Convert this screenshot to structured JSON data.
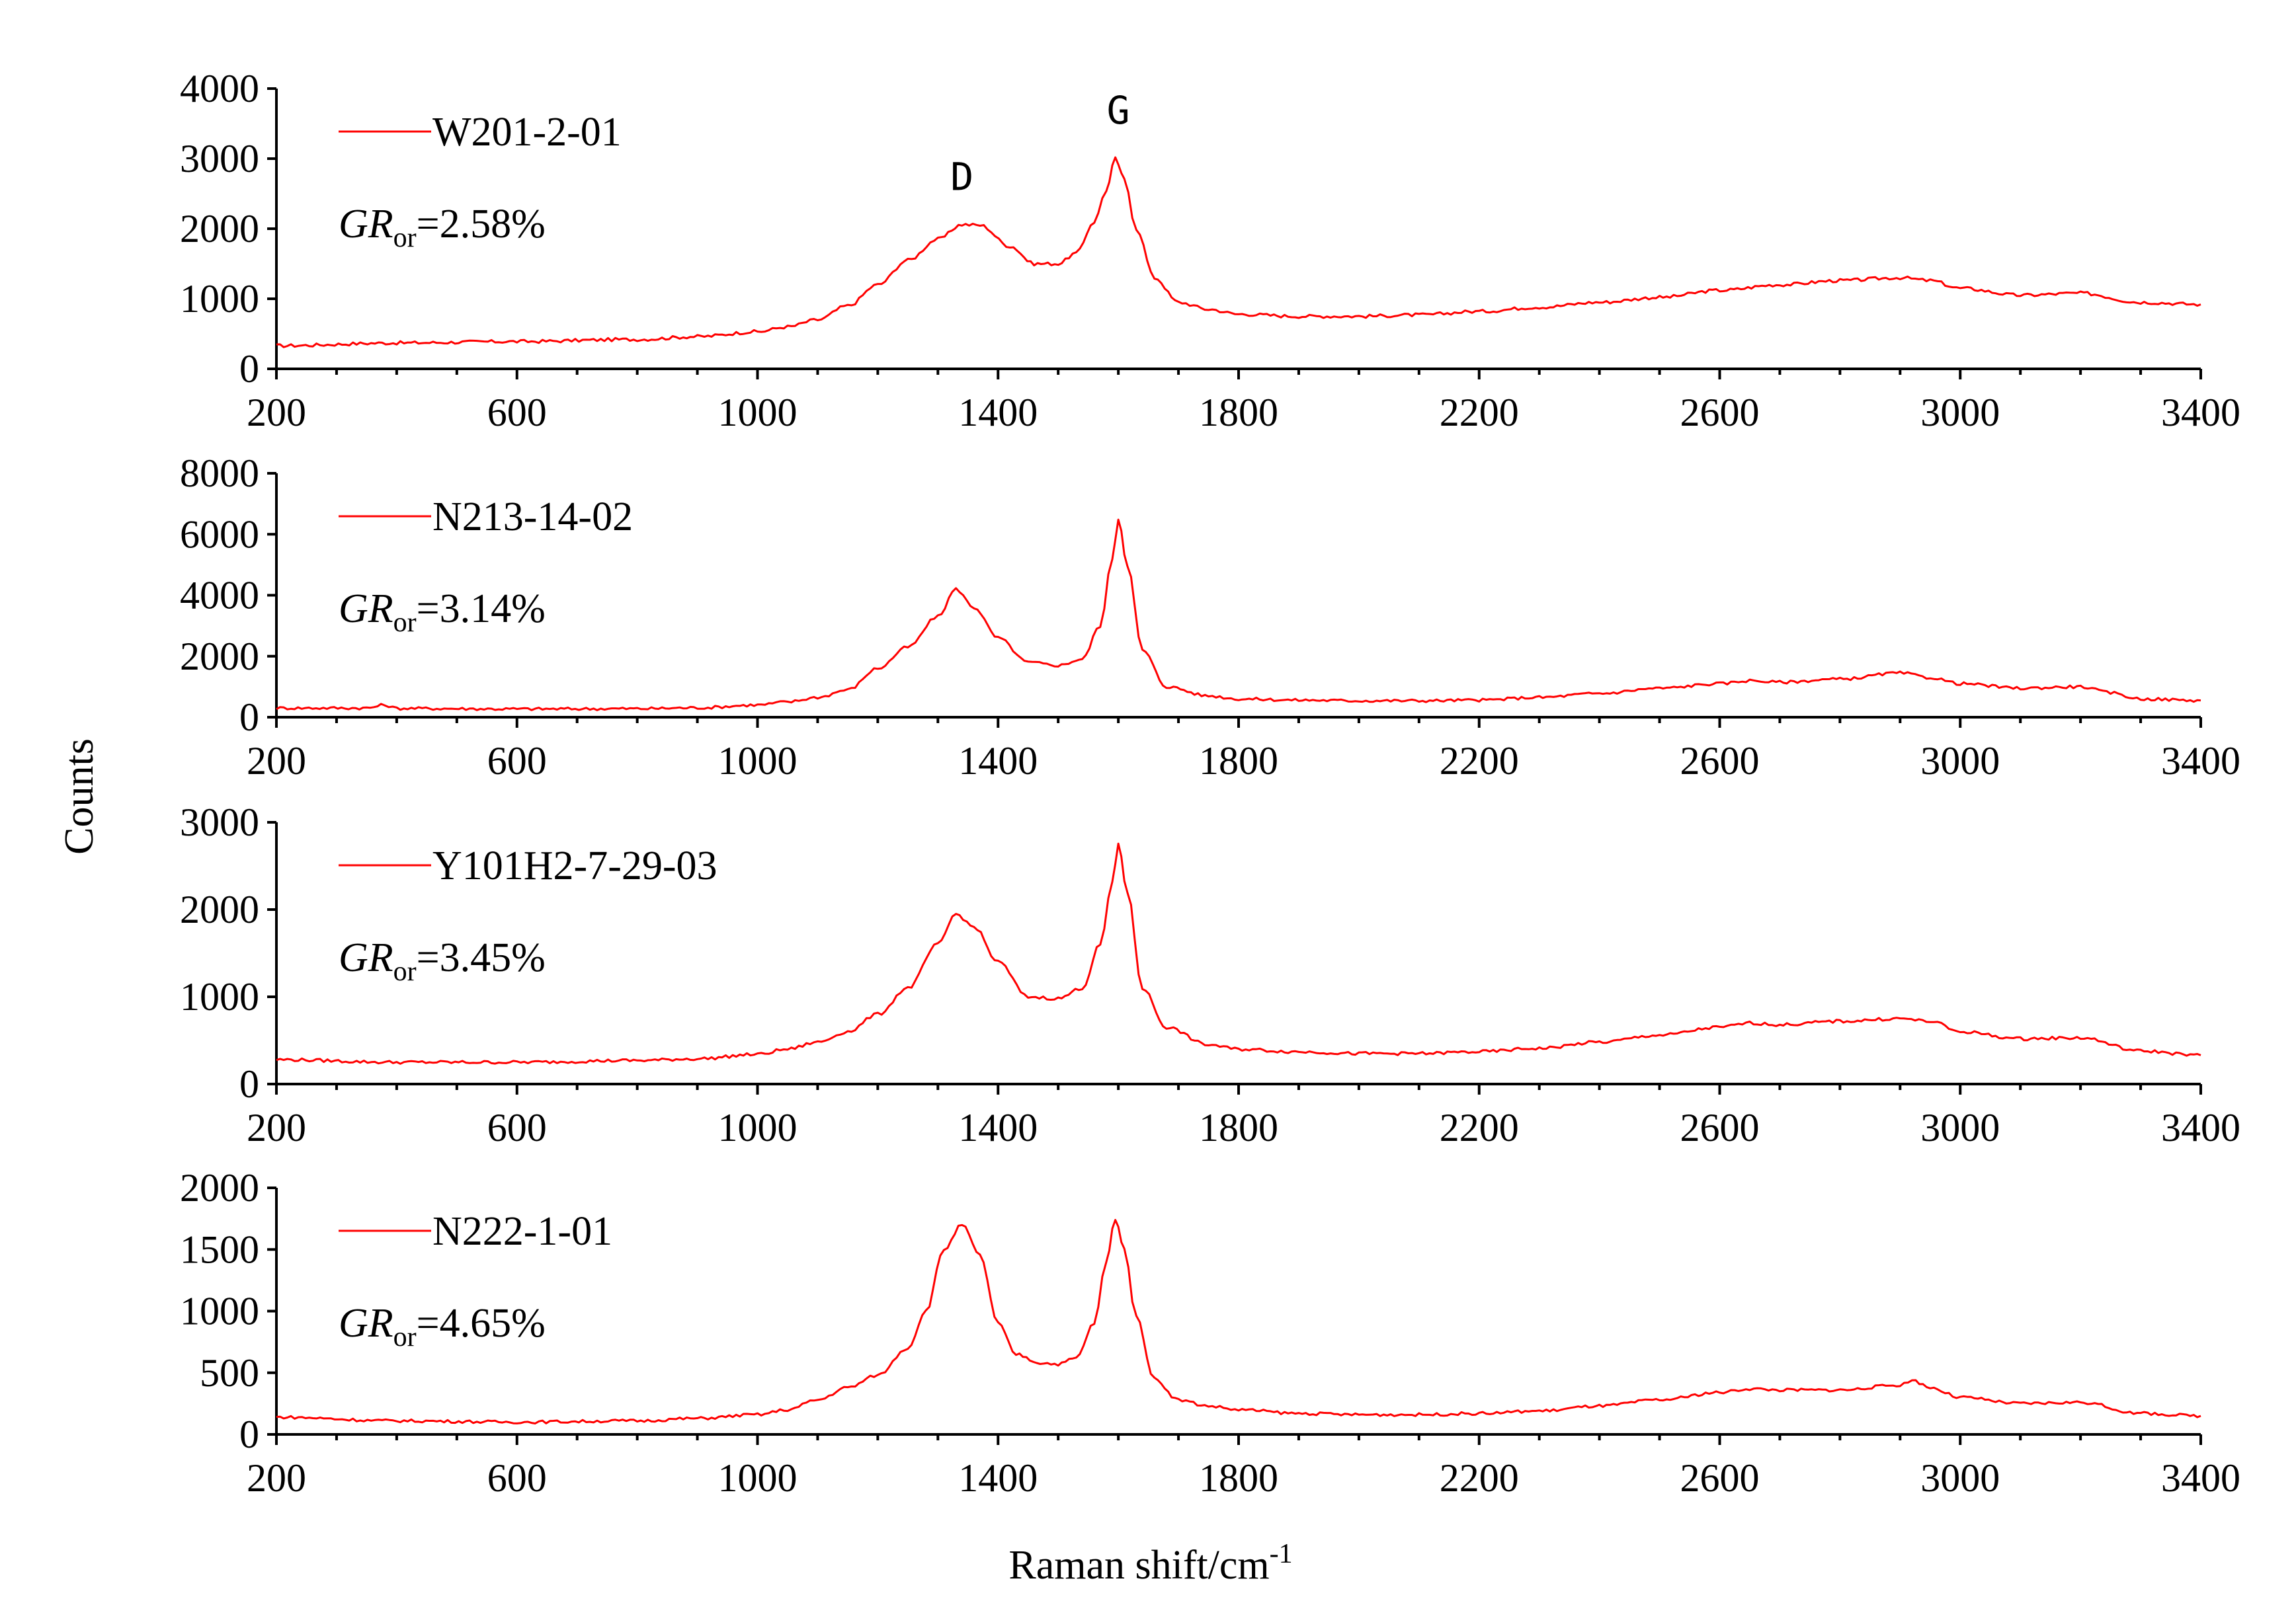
{
  "colors": {
    "series": "#ff0000",
    "axis": "#000000",
    "background": "#ffffff"
  },
  "chart_data": {
    "type": "line",
    "title": "",
    "xlabel": "Raman shift/cm",
    "xlabel_superscript": "-1",
    "ylabel": "Counts",
    "xlim": [
      200,
      3400
    ],
    "xticks": [
      200,
      600,
      1000,
      1400,
      1800,
      2200,
      2600,
      3000,
      3400
    ],
    "xtick_labels": [
      "200",
      "600",
      "1000",
      "1400",
      "1800",
      "2200",
      "2600",
      "3000",
      "3400"
    ],
    "grid": false,
    "panels": [
      {
        "series_name": "W201-2-01",
        "gr_label": "GR",
        "gr_sub": "or",
        "gr_value": "=2.58%",
        "ylim": [
          0,
          4000
        ],
        "yticks": [
          0,
          1000,
          2000,
          3000,
          4000
        ],
        "ytick_labels": [
          "0",
          "1000",
          "2000",
          "3000",
          "4000"
        ],
        "peak_labels": [
          {
            "text": "D",
            "x": 1340,
            "y": 2550
          },
          {
            "text": "G",
            "x": 1600,
            "y": 3500
          }
        ],
        "x": [
          200,
          400,
          600,
          800,
          900,
          1000,
          1050,
          1100,
          1150,
          1200,
          1250,
          1300,
          1340,
          1370,
          1420,
          1460,
          1500,
          1530,
          1560,
          1580,
          1595,
          1610,
          1630,
          1660,
          1700,
          1750,
          1800,
          1900,
          2000,
          2100,
          2200,
          2300,
          2400,
          2500,
          2600,
          2700,
          2800,
          2900,
          2950,
          3000,
          3100,
          3200,
          3300,
          3400
        ],
        "y": [
          330,
          370,
          390,
          420,
          460,
          530,
          600,
          700,
          900,
          1200,
          1550,
          1850,
          2060,
          2050,
          1750,
          1500,
          1500,
          1650,
          2100,
          2550,
          3000,
          2700,
          2000,
          1300,
          950,
          850,
          780,
          750,
          750,
          770,
          820,
          880,
          950,
          1020,
          1120,
          1200,
          1260,
          1300,
          1260,
          1150,
          1050,
          1080,
          950,
          920
        ]
      },
      {
        "series_name": "N213-14-02",
        "gr_label": "GR",
        "gr_sub": "or",
        "gr_value": "=3.14%",
        "ylim": [
          0,
          8000
        ],
        "yticks": [
          0,
          2000,
          4000,
          6000,
          8000
        ],
        "ytick_labels": [
          "0",
          "2000",
          "4000",
          "6000",
          "8000"
        ],
        "peak_labels": [],
        "x": [
          200,
          350,
          380,
          400,
          600,
          800,
          900,
          1000,
          1050,
          1100,
          1150,
          1200,
          1250,
          1300,
          1330,
          1360,
          1400,
          1450,
          1500,
          1540,
          1570,
          1590,
          1600,
          1615,
          1640,
          1680,
          1750,
          1800,
          1900,
          2000,
          2100,
          2200,
          2300,
          2400,
          2500,
          2600,
          2650,
          2700,
          2800,
          2900,
          2950,
          3000,
          3100,
          3200,
          3250,
          3300,
          3400
        ],
        "y": [
          300,
          300,
          400,
          290,
          270,
          280,
          310,
          400,
          500,
          650,
          900,
          1600,
          2300,
          3300,
          4200,
          3600,
          2600,
          1800,
          1700,
          1900,
          3000,
          5200,
          6500,
          5000,
          2200,
          1000,
          700,
          600,
          560,
          540,
          540,
          560,
          650,
          780,
          950,
          1100,
          1200,
          1150,
          1250,
          1450,
          1300,
          1100,
          950,
          1000,
          800,
          600,
          550
        ]
      },
      {
        "series_name": "Y101H2-7-29-03",
        "gr_label": "GR",
        "gr_sub": "or",
        "gr_value": "=3.45%",
        "ylim": [
          0,
          3000
        ],
        "yticks": [
          0,
          1000,
          2000,
          3000
        ],
        "ytick_labels": [
          "0",
          "1000",
          "2000",
          "3000"
        ],
        "peak_labels": [],
        "x": [
          200,
          400,
          600,
          800,
          900,
          1000,
          1050,
          1100,
          1150,
          1200,
          1250,
          1300,
          1330,
          1360,
          1400,
          1450,
          1500,
          1540,
          1570,
          1590,
          1600,
          1615,
          1640,
          1680,
          1750,
          1800,
          1900,
          2000,
          2100,
          2200,
          2300,
          2400,
          2500,
          2600,
          2650,
          2700,
          2800,
          2900,
          2950,
          3000,
          3100,
          3200,
          3300,
          3400
        ],
        "y": [
          280,
          250,
          250,
          270,
          290,
          340,
          400,
          480,
          600,
          800,
          1100,
          1600,
          1950,
          1800,
          1400,
          1000,
          980,
          1100,
          1600,
          2300,
          2750,
          2200,
          1100,
          650,
          450,
          400,
          370,
          350,
          350,
          370,
          410,
          480,
          560,
          650,
          700,
          680,
          720,
          750,
          720,
          600,
          520,
          530,
          380,
          330
        ]
      },
      {
        "series_name": "N222-1-01",
        "gr_label": "GR",
        "gr_sub": "or",
        "gr_value": "=4.65%",
        "ylim": [
          0,
          2000
        ],
        "yticks": [
          0,
          500,
          1000,
          1500,
          2000
        ],
        "ytick_labels": [
          "0",
          "500",
          "1000",
          "1500",
          "2000"
        ],
        "peak_labels": [],
        "x": [
          200,
          400,
          600,
          800,
          900,
          1000,
          1050,
          1100,
          1150,
          1200,
          1250,
          1280,
          1310,
          1340,
          1370,
          1400,
          1430,
          1470,
          1500,
          1530,
          1560,
          1580,
          1595,
          1610,
          1630,
          1660,
          1700,
          1750,
          1800,
          1900,
          2000,
          2100,
          2200,
          2300,
          2400,
          2500,
          2600,
          2650,
          2700,
          2800,
          2900,
          2920,
          2950,
          3000,
          3100,
          3200,
          3300,
          3400
        ],
        "y": [
          140,
          110,
          100,
          110,
          130,
          160,
          200,
          280,
          380,
          480,
          700,
          1000,
          1500,
          1700,
          1450,
          900,
          650,
          580,
          570,
          620,
          900,
          1400,
          1750,
          1500,
          950,
          450,
          280,
          230,
          200,
          170,
          160,
          160,
          170,
          190,
          230,
          280,
          340,
          370,
          360,
          360,
          400,
          440,
          380,
          300,
          250,
          260,
          170,
          150
        ]
      }
    ]
  }
}
